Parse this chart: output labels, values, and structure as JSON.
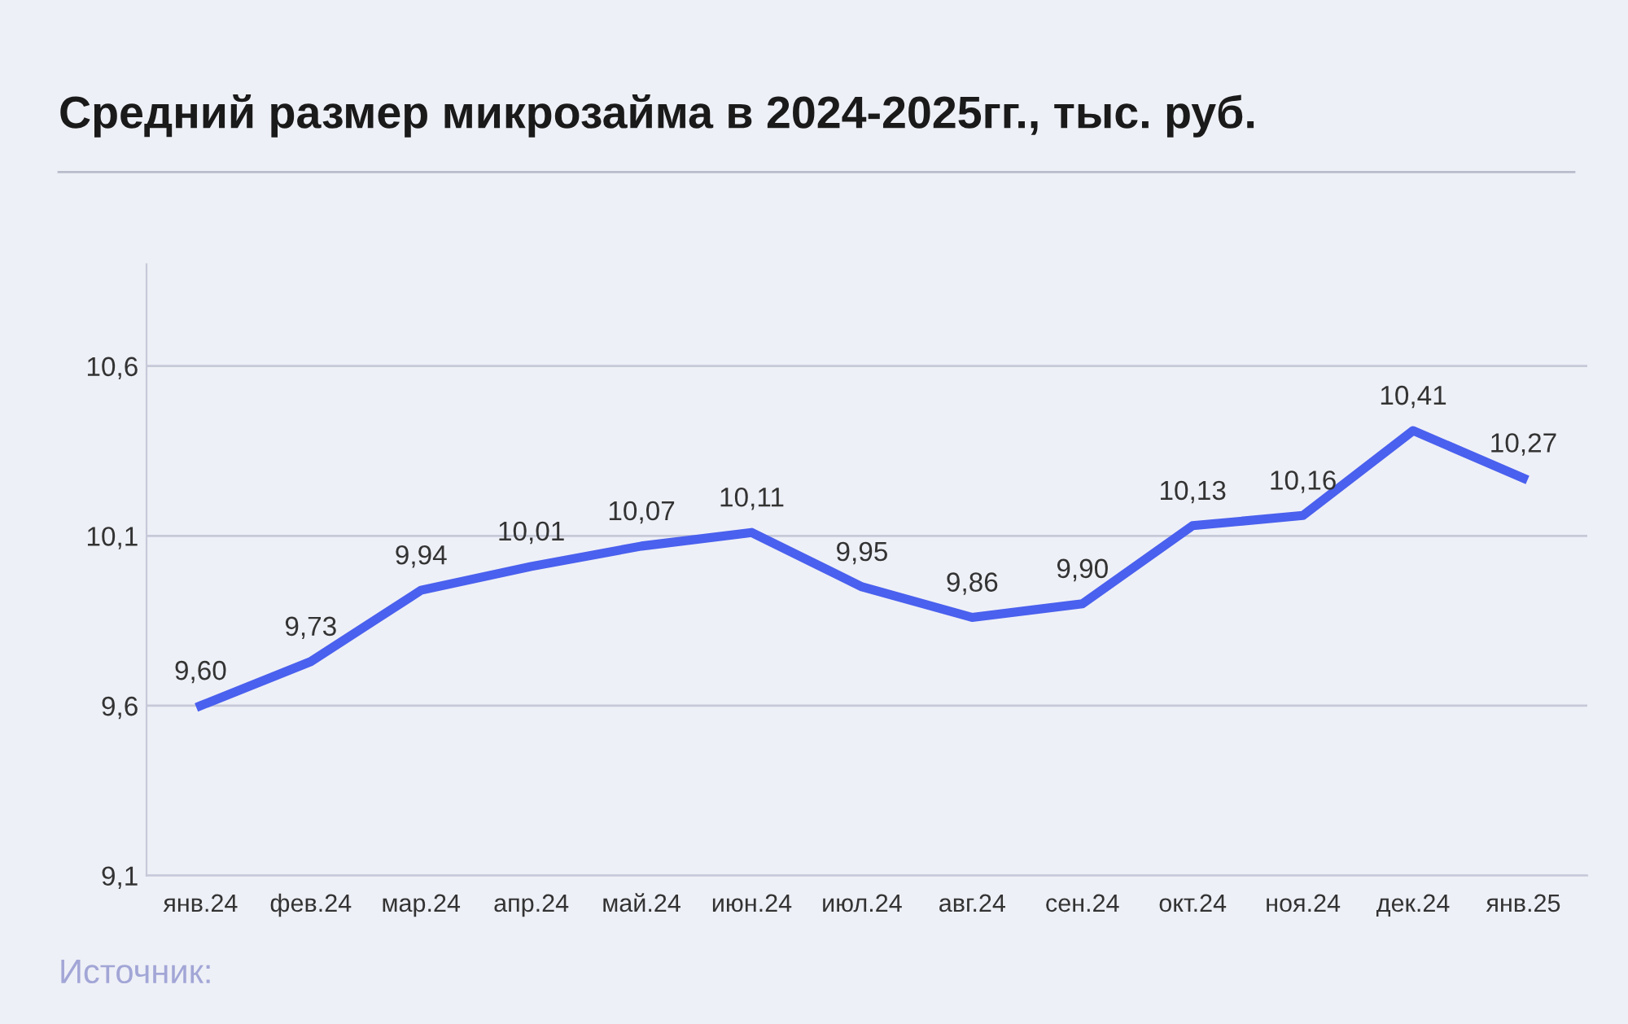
{
  "chart_data": {
    "type": "line",
    "title": "Средний размер микрозайма в 2024-2025гг., тыс. руб.",
    "categories": [
      "янв.24",
      "фев.24",
      "мар.24",
      "апр.24",
      "май.24",
      "июн.24",
      "июл.24",
      "авг.24",
      "сен.24",
      "окт.24",
      "ноя.24",
      "дек.24",
      "янв.25"
    ],
    "series": [
      {
        "color": "#4a60ee",
        "values": [
          9.6,
          9.73,
          9.94,
          10.01,
          10.07,
          10.11,
          9.95,
          9.86,
          9.9,
          10.13,
          10.16,
          10.41,
          10.27
        ],
        "value_labels": [
          "9,60",
          "9,73",
          "9,94",
          "10,01",
          "10,07",
          "10,11",
          "9,95",
          "9,86",
          "9,90",
          "10,13",
          "10,16",
          "10,41",
          "10,27"
        ]
      }
    ],
    "ylim": [
      9.1,
      10.9
    ],
    "yticks": [
      {
        "value": 9.1,
        "label": "9,1"
      },
      {
        "value": 9.6,
        "label": "9,6"
      },
      {
        "value": 10.1,
        "label": "10,1"
      },
      {
        "value": 10.6,
        "label": "10,6"
      }
    ],
    "grid": "y",
    "marker": "none",
    "line_style": "solid",
    "annotations": [
      "Источник:"
    ]
  }
}
